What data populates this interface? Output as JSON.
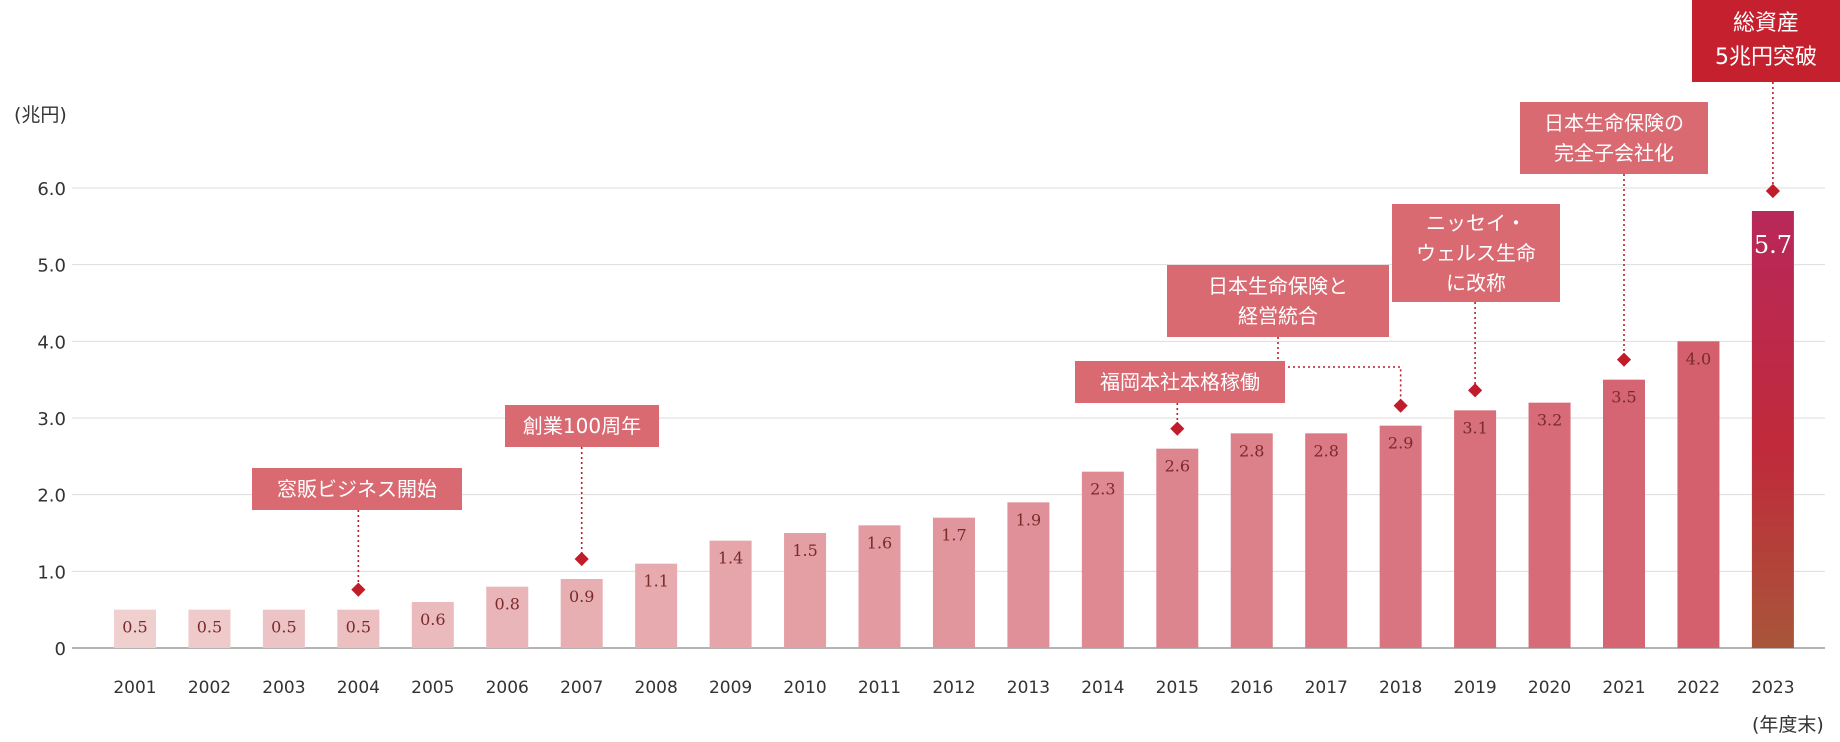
{
  "units": {
    "y": "(兆円)",
    "x": "(年度末)"
  },
  "colors": {
    "bar_light": "#f0cfcf",
    "bar_dark": "#d4606e",
    "callout": "#d96a72",
    "callout_highlight": "#c5202e",
    "marker": "#c01c2a",
    "grid": "#dddddd",
    "value_label": "#7a2a2a"
  },
  "callouts": [
    {
      "target_year": "2004",
      "lines": [
        "窓販ビジネス開始"
      ],
      "highlight": false
    },
    {
      "target_year": "2007",
      "lines": [
        "創業100周年"
      ],
      "highlight": false
    },
    {
      "target_year": "2015",
      "lines": [
        "福岡本社本格稼働"
      ],
      "highlight": false
    },
    {
      "target_year": "2018",
      "lines": [
        "日本生命保険と",
        "経営統合"
      ],
      "highlight": false
    },
    {
      "target_year": "2019",
      "lines": [
        "ニッセイ・",
        "ウェルス生命",
        "に改称"
      ],
      "highlight": false
    },
    {
      "target_year": "2021",
      "lines": [
        "日本生命保険の",
        "完全子会社化"
      ],
      "highlight": false
    },
    {
      "target_year": "2023",
      "lines": [
        "総資産",
        "5兆円突破"
      ],
      "highlight": true
    }
  ],
  "chart_data": {
    "type": "bar",
    "categories": [
      "2001",
      "2002",
      "2003",
      "2004",
      "2005",
      "2006",
      "2007",
      "2008",
      "2009",
      "2010",
      "2011",
      "2012",
      "2013",
      "2014",
      "2015",
      "2016",
      "2017",
      "2018",
      "2019",
      "2020",
      "2021",
      "2022",
      "2023"
    ],
    "values": [
      0.5,
      0.5,
      0.5,
      0.5,
      0.6,
      0.8,
      0.9,
      1.1,
      1.4,
      1.5,
      1.6,
      1.7,
      1.9,
      2.3,
      2.6,
      2.8,
      2.8,
      2.9,
      3.1,
      3.2,
      3.5,
      4.0,
      5.7
    ],
    "value_labels": [
      "0.5",
      "0.5",
      "0.5",
      "0.5",
      "0.6",
      "0.8",
      "0.9",
      "1.1",
      "1.4",
      "1.5",
      "1.6",
      "1.7",
      "1.9",
      "2.3",
      "2.6",
      "2.8",
      "2.8",
      "2.9",
      "3.1",
      "3.2",
      "3.5",
      "4.0",
      "5.7"
    ],
    "y_ticks": [
      "0",
      "1.0",
      "2.0",
      "3.0",
      "4.0",
      "5.0",
      "6.0"
    ],
    "ylim": [
      0,
      6.0
    ],
    "grid": true,
    "legend": "none"
  }
}
